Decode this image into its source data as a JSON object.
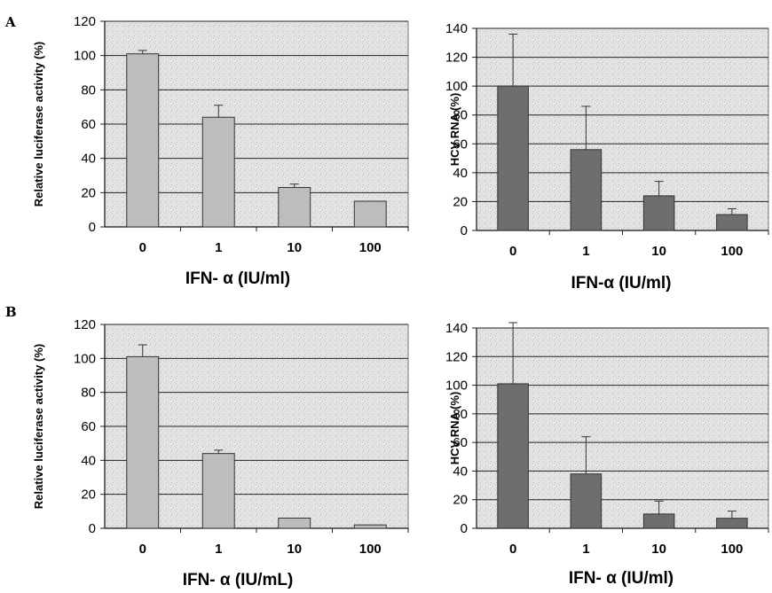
{
  "panel_labels": {
    "A": "A",
    "B": "B"
  },
  "chart_data": [
    {
      "type": "bar",
      "panel": "A",
      "categories": [
        "0",
        "1",
        "10",
        "100"
      ],
      "values": [
        101,
        64,
        23,
        15
      ],
      "errors": [
        2,
        7,
        2,
        0
      ],
      "ylabel": "Relative luciferase activity (%)",
      "xlabel": "IFN- α (IU/ml)",
      "ylim": [
        0,
        120
      ],
      "yticks": [
        0,
        20,
        40,
        60,
        80,
        100,
        120
      ],
      "grid": true,
      "bar_color": "#bdbdbd"
    },
    {
      "type": "bar",
      "panel": "A",
      "categories": [
        "0",
        "1",
        "10",
        "100"
      ],
      "values": [
        100,
        56,
        24,
        11
      ],
      "errors": [
        36,
        30,
        10,
        4
      ],
      "ylabel": "HCV RNA (%)",
      "xlabel": "IFN-α (IU/ml)",
      "ylim": [
        0,
        140
      ],
      "yticks": [
        0,
        20,
        40,
        60,
        80,
        100,
        120,
        140
      ],
      "grid": true,
      "bar_color": "#6e6e6e"
    },
    {
      "type": "bar",
      "panel": "B",
      "categories": [
        "0",
        "1",
        "10",
        "100"
      ],
      "values": [
        101,
        44,
        6,
        2
      ],
      "errors": [
        7,
        2,
        0,
        0
      ],
      "ylabel": "Relative luciferase activity (%)",
      "xlabel": "IFN- α (IU/mL)",
      "ylim": [
        0,
        120
      ],
      "yticks": [
        0,
        20,
        40,
        60,
        80,
        100,
        120
      ],
      "grid": true,
      "bar_color": "#bdbdbd"
    },
    {
      "type": "bar",
      "panel": "B",
      "categories": [
        "0",
        "1",
        "10",
        "100"
      ],
      "values": [
        101,
        38,
        10,
        7
      ],
      "errors": [
        45,
        26,
        9,
        5
      ],
      "ylabel": "HCV RNA (%)",
      "xlabel": "IFN- α (IU/ml)",
      "ylim": [
        0,
        140
      ],
      "yticks": [
        0,
        20,
        40,
        60,
        80,
        100,
        120,
        140
      ],
      "grid": true,
      "bar_color": "#6e6e6e"
    }
  ]
}
